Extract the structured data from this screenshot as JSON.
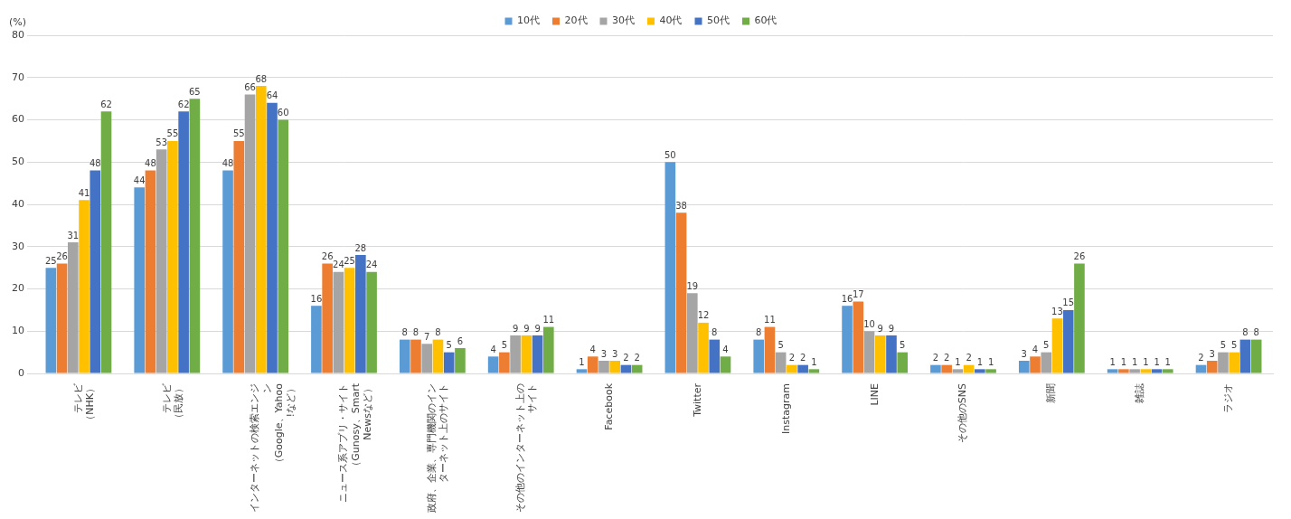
{
  "chart_data": {
    "type": "bar",
    "y_label": "(%)",
    "categories": [
      "テレビ（NHK）",
      "テレビ（民放）",
      "インターネットの検索エンジン（Google、Yahoo!など）",
      "ニュース系アプリ・サイト（Gunosy、SmartNewsなど）",
      "政府、企業、専門機関のインターネット上のサイト",
      "その他のインターネット上のサイト",
      "Facebook",
      "Twitter",
      "Instagram",
      "LINE",
      "その他のSNS",
      "新聞",
      "雑誌",
      "ラジオ"
    ],
    "series": [
      {
        "name": "10代",
        "color": "#5b9bd5",
        "values": [
          25,
          44,
          48,
          16,
          8,
          4,
          1,
          50,
          8,
          16,
          2,
          3,
          1,
          2
        ]
      },
      {
        "name": "20代",
        "color": "#ed7d31",
        "values": [
          26,
          48,
          55,
          26,
          8,
          5,
          4,
          38,
          11,
          17,
          2,
          4,
          1,
          3
        ]
      },
      {
        "name": "30代",
        "color": "#a5a5a5",
        "values": [
          31,
          53,
          66,
          24,
          7,
          9,
          3,
          19,
          5,
          10,
          1,
          5,
          1,
          5
        ]
      },
      {
        "name": "40代",
        "color": "#ffc000",
        "values": [
          41,
          55,
          68,
          25,
          8,
          9,
          3,
          12,
          2,
          9,
          2,
          13,
          1,
          5
        ]
      },
      {
        "name": "50代",
        "color": "#4472c4",
        "values": [
          48,
          62,
          64,
          28,
          5,
          9,
          2,
          8,
          2,
          9,
          1,
          15,
          1,
          8
        ]
      },
      {
        "name": "60代",
        "color": "#70ad47",
        "values": [
          62,
          65,
          60,
          24,
          6,
          11,
          2,
          4,
          1,
          5,
          1,
          26,
          1,
          8
        ]
      }
    ],
    "ylim": [
      0,
      80
    ],
    "yticks": [
      0,
      10,
      20,
      30,
      40,
      50,
      60,
      70,
      80
    ],
    "grid": true,
    "legend": "top",
    "data_labels": true
  }
}
